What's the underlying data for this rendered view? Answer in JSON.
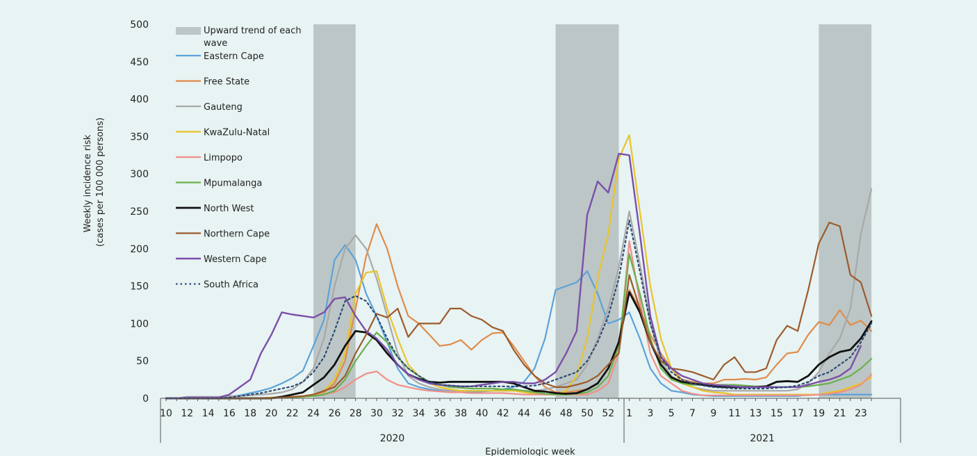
{
  "chart_data": {
    "type": "line",
    "xlabel": "Epidemiologic week",
    "ylabel_line1": "Weekly incidence risk",
    "ylabel_line2": "(cases per 100 000 persons)",
    "ylim": [
      0,
      500
    ],
    "yticks": [
      "0",
      "50",
      "100",
      "150",
      "200",
      "250",
      "300",
      "350",
      "400",
      "450",
      "500"
    ],
    "x": [
      "10",
      "11",
      "12",
      "13",
      "14",
      "15",
      "16",
      "17",
      "18",
      "19",
      "20",
      "21",
      "22",
      "23",
      "24",
      "25",
      "26",
      "27",
      "28",
      "29",
      "30",
      "31",
      "32",
      "33",
      "34",
      "35",
      "36",
      "37",
      "38",
      "39",
      "40",
      "41",
      "42",
      "43",
      "44",
      "45",
      "46",
      "47",
      "48",
      "49",
      "50",
      "51",
      "52",
      "53",
      "1",
      "2",
      "3",
      "4",
      "5",
      "6",
      "7",
      "8",
      "9",
      "10",
      "11",
      "12",
      "13",
      "14",
      "15",
      "16",
      "17",
      "18",
      "19",
      "20",
      "21",
      "22",
      "23",
      "24"
    ],
    "x_tick_labels": [
      "10",
      "12",
      "14",
      "16",
      "18",
      "20",
      "22",
      "24",
      "26",
      "28",
      "30",
      "32",
      "34",
      "36",
      "38",
      "40",
      "42",
      "44",
      "46",
      "48",
      "50",
      "52",
      "1",
      "3",
      "5",
      "7",
      "9",
      "11",
      "13",
      "15",
      "17",
      "19",
      "21",
      "23"
    ],
    "years": [
      {
        "label": "2020",
        "from_week_index": 0,
        "to_week_index": 43
      },
      {
        "label": "2021",
        "from_week_index": 44,
        "to_week_index": 67
      }
    ],
    "wave_bands": [
      {
        "from": "24",
        "to": "28",
        "year": "2020"
      },
      {
        "from": "47",
        "to": "53",
        "year": "2020"
      },
      {
        "from": "19",
        "to": "24",
        "year": "2021"
      }
    ],
    "band_legend": "Upward trend of each wave",
    "series": [
      {
        "name": "Eastern Cape",
        "color": "#5ba3d9",
        "dash": "none",
        "width": 2.2,
        "values": [
          0,
          0,
          1,
          1,
          1,
          1,
          2,
          4,
          7,
          10,
          14,
          20,
          27,
          37,
          70,
          105,
          185,
          205,
          185,
          140,
          110,
          75,
          40,
          20,
          15,
          12,
          10,
          8,
          8,
          8,
          9,
          10,
          12,
          15,
          22,
          40,
          80,
          145,
          150,
          155,
          170,
          140,
          100,
          105,
          115,
          80,
          40,
          20,
          10,
          8,
          5,
          4,
          3,
          3,
          3,
          3,
          3,
          3,
          3,
          3,
          3,
          5,
          5,
          5,
          5,
          5,
          5,
          5
        ]
      },
      {
        "name": "Free State",
        "color": "#df8c4a",
        "dash": "none",
        "width": 2.2,
        "values": [
          0,
          0,
          0,
          0,
          0,
          0,
          0,
          0,
          0,
          0,
          1,
          1,
          2,
          3,
          5,
          8,
          20,
          50,
          120,
          190,
          233,
          200,
          150,
          110,
          100,
          85,
          70,
          72,
          78,
          65,
          78,
          87,
          88,
          70,
          50,
          30,
          15,
          8,
          8,
          10,
          12,
          20,
          40,
          70,
          145,
          120,
          85,
          60,
          40,
          25,
          22,
          20,
          20,
          25,
          25,
          26,
          25,
          28,
          45,
          60,
          62,
          85,
          102,
          98,
          118,
          98,
          104,
          90
        ]
      },
      {
        "name": "Gauteng",
        "color": "#a8a8a8",
        "dash": "none",
        "width": 2.2,
        "values": [
          0,
          0,
          2,
          2,
          2,
          2,
          3,
          3,
          4,
          5,
          6,
          8,
          12,
          22,
          40,
          80,
          150,
          200,
          218,
          200,
          160,
          110,
          60,
          30,
          20,
          15,
          12,
          10,
          10,
          10,
          10,
          10,
          10,
          10,
          10,
          10,
          12,
          15,
          20,
          25,
          45,
          80,
          120,
          175,
          250,
          180,
          100,
          50,
          30,
          20,
          15,
          12,
          10,
          10,
          10,
          10,
          10,
          10,
          10,
          10,
          12,
          20,
          35,
          60,
          80,
          120,
          220,
          280
        ]
      },
      {
        "name": "KwaZulu-Natal",
        "color": "#e8c42b",
        "dash": "none",
        "width": 2.2,
        "values": [
          0,
          0,
          0,
          0,
          0,
          0,
          0,
          0,
          0,
          0,
          1,
          1,
          2,
          3,
          5,
          10,
          25,
          60,
          140,
          168,
          170,
          120,
          80,
          45,
          30,
          20,
          15,
          12,
          10,
          10,
          10,
          10,
          10,
          10,
          8,
          6,
          5,
          5,
          10,
          30,
          80,
          160,
          220,
          320,
          352,
          250,
          150,
          80,
          40,
          20,
          15,
          10,
          8,
          7,
          5,
          5,
          5,
          5,
          5,
          5,
          5,
          5,
          5,
          8,
          10,
          15,
          20,
          28
        ]
      },
      {
        "name": "Limpopo",
        "color": "#f08f88",
        "dash": "none",
        "width": 2.2,
        "values": [
          0,
          0,
          0,
          0,
          0,
          0,
          0,
          0,
          0,
          0,
          0,
          1,
          1,
          2,
          3,
          5,
          8,
          15,
          25,
          33,
          36,
          25,
          18,
          15,
          12,
          10,
          9,
          8,
          8,
          7,
          7,
          7,
          7,
          6,
          5,
          5,
          5,
          5,
          5,
          5,
          5,
          10,
          20,
          60,
          210,
          130,
          60,
          30,
          20,
          10,
          6,
          4,
          4,
          4,
          4,
          4,
          4,
          4,
          4,
          4,
          4,
          4,
          5,
          6,
          8,
          12,
          18,
          32
        ]
      },
      {
        "name": "Mpumalanga",
        "color": "#6ab04c",
        "dash": "none",
        "width": 2.2,
        "values": [
          0,
          0,
          0,
          0,
          0,
          0,
          0,
          0,
          0,
          0,
          0,
          1,
          1,
          2,
          3,
          5,
          10,
          25,
          50,
          70,
          88,
          75,
          55,
          40,
          30,
          22,
          18,
          15,
          14,
          13,
          13,
          13,
          12,
          12,
          10,
          8,
          6,
          5,
          5,
          6,
          8,
          15,
          30,
          70,
          193,
          140,
          80,
          40,
          25,
          20,
          18,
          18,
          18,
          18,
          18,
          17,
          16,
          16,
          15,
          15,
          15,
          16,
          18,
          20,
          25,
          30,
          40,
          53
        ]
      },
      {
        "name": "North West",
        "color": "#111111",
        "dash": "none",
        "width": 2.8,
        "values": [
          0,
          0,
          0,
          0,
          0,
          0,
          0,
          0,
          0,
          0,
          0,
          2,
          5,
          8,
          18,
          28,
          45,
          70,
          90,
          88,
          78,
          60,
          45,
          32,
          26,
          22,
          21,
          22,
          22,
          22,
          22,
          22,
          22,
          20,
          15,
          10,
          9,
          7,
          6,
          7,
          12,
          20,
          40,
          75,
          142,
          115,
          75,
          45,
          28,
          22,
          20,
          18,
          16,
          15,
          15,
          15,
          15,
          16,
          22,
          23,
          22,
          30,
          45,
          55,
          62,
          65,
          80,
          103
        ]
      },
      {
        "name": "Northern Cape",
        "color": "#9c5a2a",
        "dash": "none",
        "width": 2.2,
        "values": [
          0,
          0,
          0,
          0,
          0,
          0,
          0,
          0,
          0,
          0,
          0,
          1,
          2,
          3,
          5,
          10,
          15,
          30,
          60,
          85,
          113,
          108,
          120,
          82,
          100,
          100,
          100,
          120,
          120,
          110,
          105,
          95,
          90,
          65,
          45,
          30,
          20,
          15,
          15,
          18,
          22,
          30,
          45,
          60,
          165,
          120,
          75,
          50,
          40,
          38,
          35,
          30,
          25,
          45,
          55,
          35,
          35,
          40,
          78,
          97,
          90,
          145,
          207,
          235,
          230,
          165,
          155,
          110
        ]
      },
      {
        "name": "Western Cape",
        "color": "#7b4fa8",
        "dash": "none",
        "width": 2.4,
        "values": [
          0,
          0,
          1,
          1,
          1,
          1,
          5,
          15,
          25,
          60,
          85,
          115,
          112,
          110,
          108,
          115,
          133,
          135,
          110,
          90,
          80,
          65,
          45,
          32,
          25,
          20,
          18,
          17,
          16,
          16,
          18,
          20,
          22,
          22,
          20,
          20,
          25,
          35,
          60,
          90,
          245,
          290,
          275,
          327,
          325,
          220,
          110,
          55,
          40,
          30,
          25,
          20,
          18,
          17,
          16,
          15,
          15,
          15,
          15,
          15,
          15,
          18,
          22,
          25,
          30,
          40,
          70,
          null
        ]
      },
      {
        "name": "South Africa",
        "color": "#2d4a73",
        "dash": "2.5,4",
        "width": 2.2,
        "values": [
          0,
          0,
          0,
          0,
          0,
          0,
          1,
          3,
          5,
          7,
          10,
          13,
          16,
          22,
          35,
          55,
          90,
          130,
          137,
          130,
          110,
          80,
          55,
          40,
          30,
          22,
          18,
          17,
          16,
          16,
          16,
          16,
          16,
          16,
          16,
          17,
          20,
          25,
          30,
          35,
          50,
          75,
          110,
          160,
          238,
          170,
          100,
          55,
          35,
          25,
          20,
          17,
          15,
          14,
          13,
          13,
          13,
          13,
          14,
          15,
          17,
          22,
          30,
          35,
          45,
          55,
          75,
          100
        ]
      }
    ]
  }
}
